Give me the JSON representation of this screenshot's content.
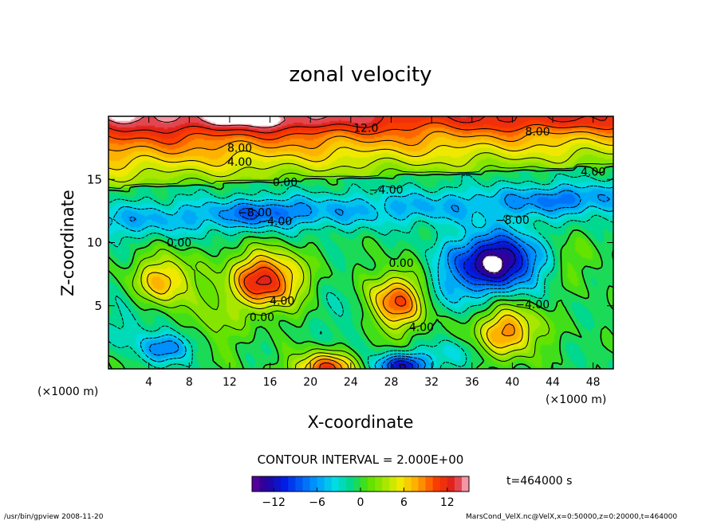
{
  "chart_data": {
    "type": "heatmap",
    "title": "zonal velocity",
    "xlabel": "X-coordinate",
    "ylabel": "Z-coordinate",
    "x_unit_note_left": "(×1000 m)",
    "x_unit_note_right": "(×1000 m)",
    "xlim": [
      0,
      50
    ],
    "ylim": [
      0,
      20
    ],
    "x_ticks": [
      4,
      8,
      12,
      16,
      20,
      24,
      28,
      32,
      36,
      40,
      44,
      48
    ],
    "y_ticks": [
      5,
      10,
      15
    ],
    "contour_interval_text": "CONTOUR INTERVAL = 2.000E+00",
    "time_text": "t=464000 s",
    "colorbar": {
      "min": -15,
      "max": 15,
      "tick_values": [
        -12,
        -6,
        0,
        6,
        12
      ],
      "tick_labels": [
        "−12",
        "−6",
        "0",
        "6",
        "12"
      ]
    },
    "contour_labels": [
      {
        "text": "12.0",
        "x": 25.5,
        "z": 19.1
      },
      {
        "text": "8.00",
        "x": 13.0,
        "z": 17.5
      },
      {
        "text": "8.00",
        "x": 42.5,
        "z": 18.8
      },
      {
        "text": "4.00",
        "x": 13.0,
        "z": 16.4
      },
      {
        "text": "4.00",
        "x": 48.0,
        "z": 15.6
      },
      {
        "text": "0.00",
        "x": 17.5,
        "z": 14.8
      },
      {
        "text": "−4.00",
        "x": 27.5,
        "z": 14.2
      },
      {
        "text": "−8.00",
        "x": 14.5,
        "z": 12.4
      },
      {
        "text": "−4.00",
        "x": 16.5,
        "z": 11.7
      },
      {
        "text": "−8.00",
        "x": 40.0,
        "z": 11.8
      },
      {
        "text": "0.00",
        "x": 7.0,
        "z": 10.0
      },
      {
        "text": "0.00",
        "x": 29.0,
        "z": 8.4
      },
      {
        "text": "4.00",
        "x": 17.2,
        "z": 5.4
      },
      {
        "text": "0.00",
        "x": 15.2,
        "z": 4.1
      },
      {
        "text": "4.00",
        "x": 31.0,
        "z": 3.3
      },
      {
        "text": "−4.00",
        "x": 42.0,
        "z": 5.1
      }
    ],
    "features": [
      {
        "type": "max",
        "x": 5.5,
        "z": 7.0,
        "value": 8
      },
      {
        "type": "max",
        "x": 15.5,
        "z": 7.0,
        "value": 13
      },
      {
        "type": "max",
        "x": 28.5,
        "z": 5.3,
        "value": 10
      },
      {
        "type": "max",
        "x": 39.5,
        "z": 3.0,
        "value": 9
      },
      {
        "type": "max",
        "x": 21.5,
        "z": 0.2,
        "value": 11
      },
      {
        "type": "min",
        "x": 38.5,
        "z": 8.5,
        "value": -15
      },
      {
        "type": "min",
        "x": 6.0,
        "z": 1.7,
        "value": -7
      },
      {
        "type": "min",
        "x": 29.0,
        "z": 0.3,
        "value": -10
      },
      {
        "type": "min",
        "x": 15.5,
        "z": 12.4,
        "value": -8
      },
      {
        "type": "min",
        "x": 44.0,
        "z": 13.5,
        "value": -6
      }
    ]
  },
  "footer": {
    "left": "/usr/bin/gpview  2008-11-20",
    "right": "MarsCond_VelX.nc@VelX,x=0:50000,z=0:20000,t=464000"
  }
}
